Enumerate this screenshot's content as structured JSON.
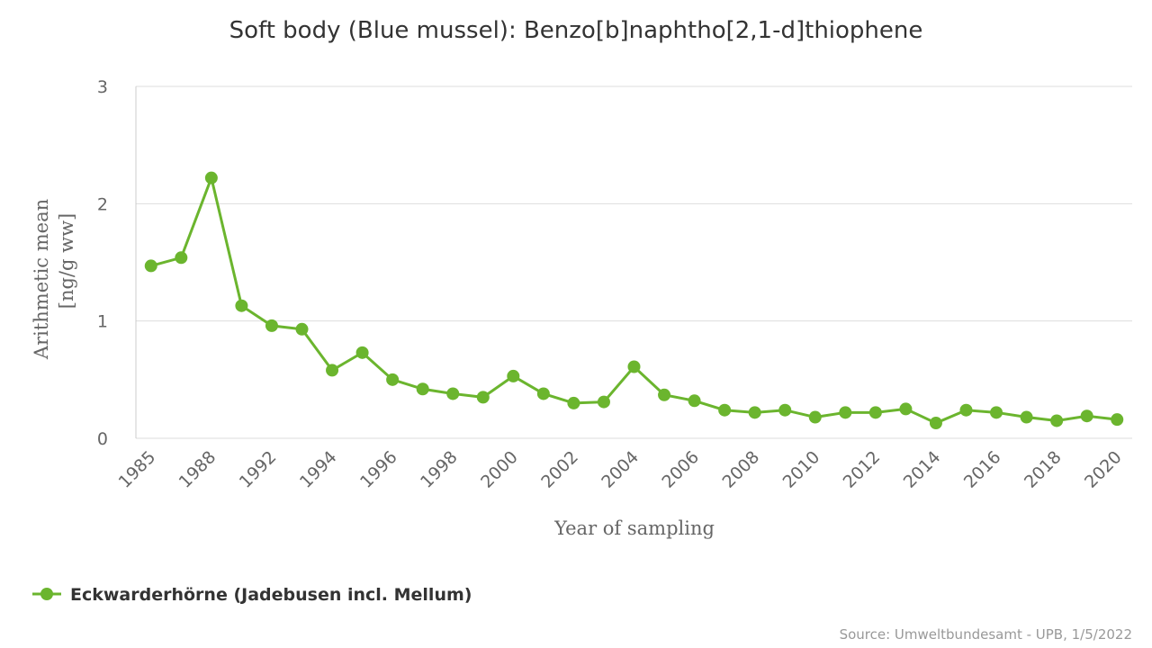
{
  "chart_data": {
    "type": "line",
    "title": "Soft body (Blue mussel): Benzo[b]naphtho[2,1-d]thiophene",
    "x_label": "Year of sampling",
    "y_label": [
      "Arithmetic mean",
      "[ng/g ww]"
    ],
    "source": "Source: Umweltbundesamt - UPB, 1/5/2022",
    "categories": [
      "1985",
      null,
      "1988",
      null,
      "1992",
      null,
      "1994",
      null,
      "1996",
      null,
      "1998",
      null,
      "2000",
      null,
      "2002",
      null,
      "2004",
      null,
      "2006",
      null,
      "2008",
      null,
      "2010",
      null,
      "2012",
      null,
      "2014",
      null,
      "2016",
      null,
      "2018",
      null,
      "2020"
    ],
    "series": [
      {
        "name": "Eckwarderhörne (Jadebusen incl. Mellum)",
        "color": "#6bb52e",
        "values": [
          1.47,
          1.54,
          2.22,
          1.13,
          0.96,
          0.93,
          0.58,
          0.73,
          0.5,
          0.42,
          0.38,
          0.35,
          0.53,
          0.38,
          0.3,
          0.31,
          0.61,
          0.37,
          0.32,
          0.24,
          0.22,
          0.24,
          0.18,
          0.22,
          0.22,
          0.25,
          0.13,
          0.24,
          0.22,
          0.18,
          0.15,
          0.19,
          0.16
        ]
      }
    ],
    "ylim": [
      0,
      3
    ],
    "yticks": [
      0,
      1,
      2,
      3
    ],
    "grid": true,
    "legend": "bottom-left"
  }
}
